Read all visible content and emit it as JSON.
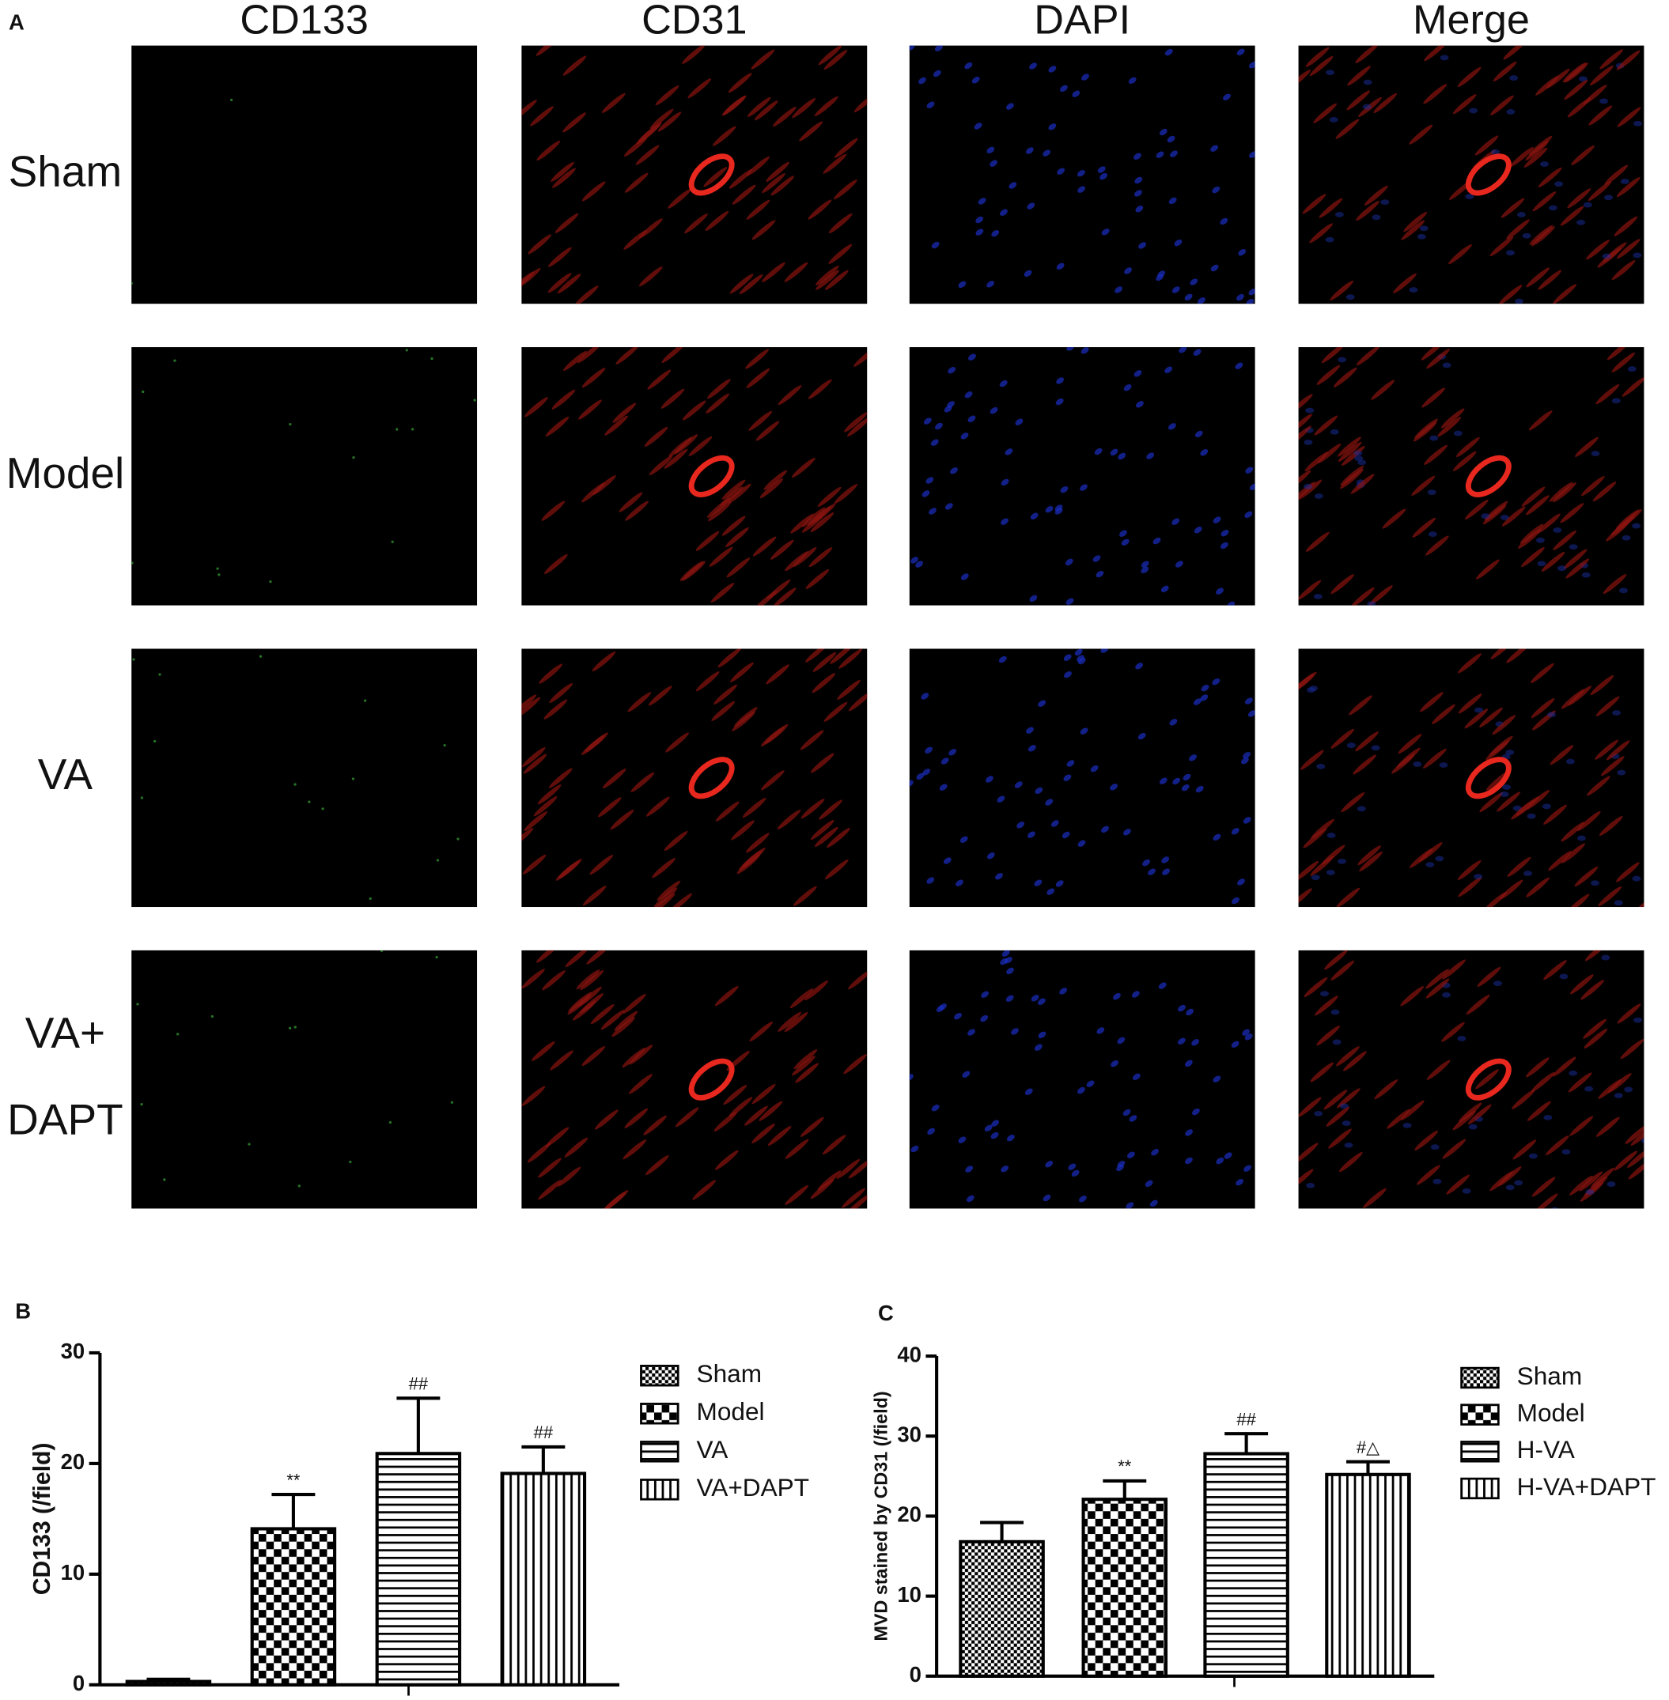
{
  "figure_a": {
    "panel_label": "A",
    "columns": [
      "CD133",
      "CD31",
      "DAPI",
      "Merge"
    ],
    "rows": [
      [
        "Sham"
      ],
      [
        "Model"
      ],
      [
        "VA"
      ],
      [
        "VA+",
        "DAPT"
      ]
    ]
  },
  "chart_data": [
    {
      "type": "bar",
      "panel_label": "B",
      "ylabel": "CD133 (/field)",
      "categories": [
        null
      ],
      "ylim": [
        0,
        30
      ],
      "yticks": [
        0,
        10,
        20,
        30
      ],
      "series": [
        {
          "name": "Sham",
          "color": "#000000",
          "pattern": "checker-fine",
          "values": [
            0.3
          ],
          "errors": [
            0.2
          ]
        },
        {
          "name": "Model",
          "color": "#000000",
          "pattern": "checker",
          "values": [
            14.1
          ],
          "errors": [
            3.1
          ],
          "annotation": "**"
        },
        {
          "name": "VA",
          "color": "#000000",
          "pattern": "hlines",
          "values": [
            20.9
          ],
          "errors": [
            5.0
          ],
          "annotation": "##"
        },
        {
          "name": "VA+DAPT",
          "color": "#000000",
          "pattern": "vlines",
          "values": [
            19.1
          ],
          "errors": [
            2.4
          ],
          "annotation": "##"
        }
      ]
    },
    {
      "type": "bar",
      "panel_label": "C",
      "ylabel": "MVD stained by CD31 (/field)",
      "categories": [
        null
      ],
      "ylim": [
        0,
        40
      ],
      "yticks": [
        0,
        10,
        20,
        30,
        40
      ],
      "series": [
        {
          "name": "Sham",
          "color": "#000000",
          "pattern": "checker-fine",
          "values": [
            16.8
          ],
          "errors": [
            2.4
          ]
        },
        {
          "name": "Model",
          "color": "#000000",
          "pattern": "checker",
          "values": [
            22.1
          ],
          "errors": [
            2.3
          ],
          "annotation": "**"
        },
        {
          "name": "H-VA",
          "color": "#000000",
          "pattern": "hlines",
          "values": [
            27.8
          ],
          "errors": [
            2.5
          ],
          "annotation": "##"
        },
        {
          "name": "H-VA+DAPT",
          "color": "#000000",
          "pattern": "vlines",
          "values": [
            25.2
          ],
          "errors": [
            1.6
          ],
          "annotation": "#△"
        }
      ]
    }
  ]
}
